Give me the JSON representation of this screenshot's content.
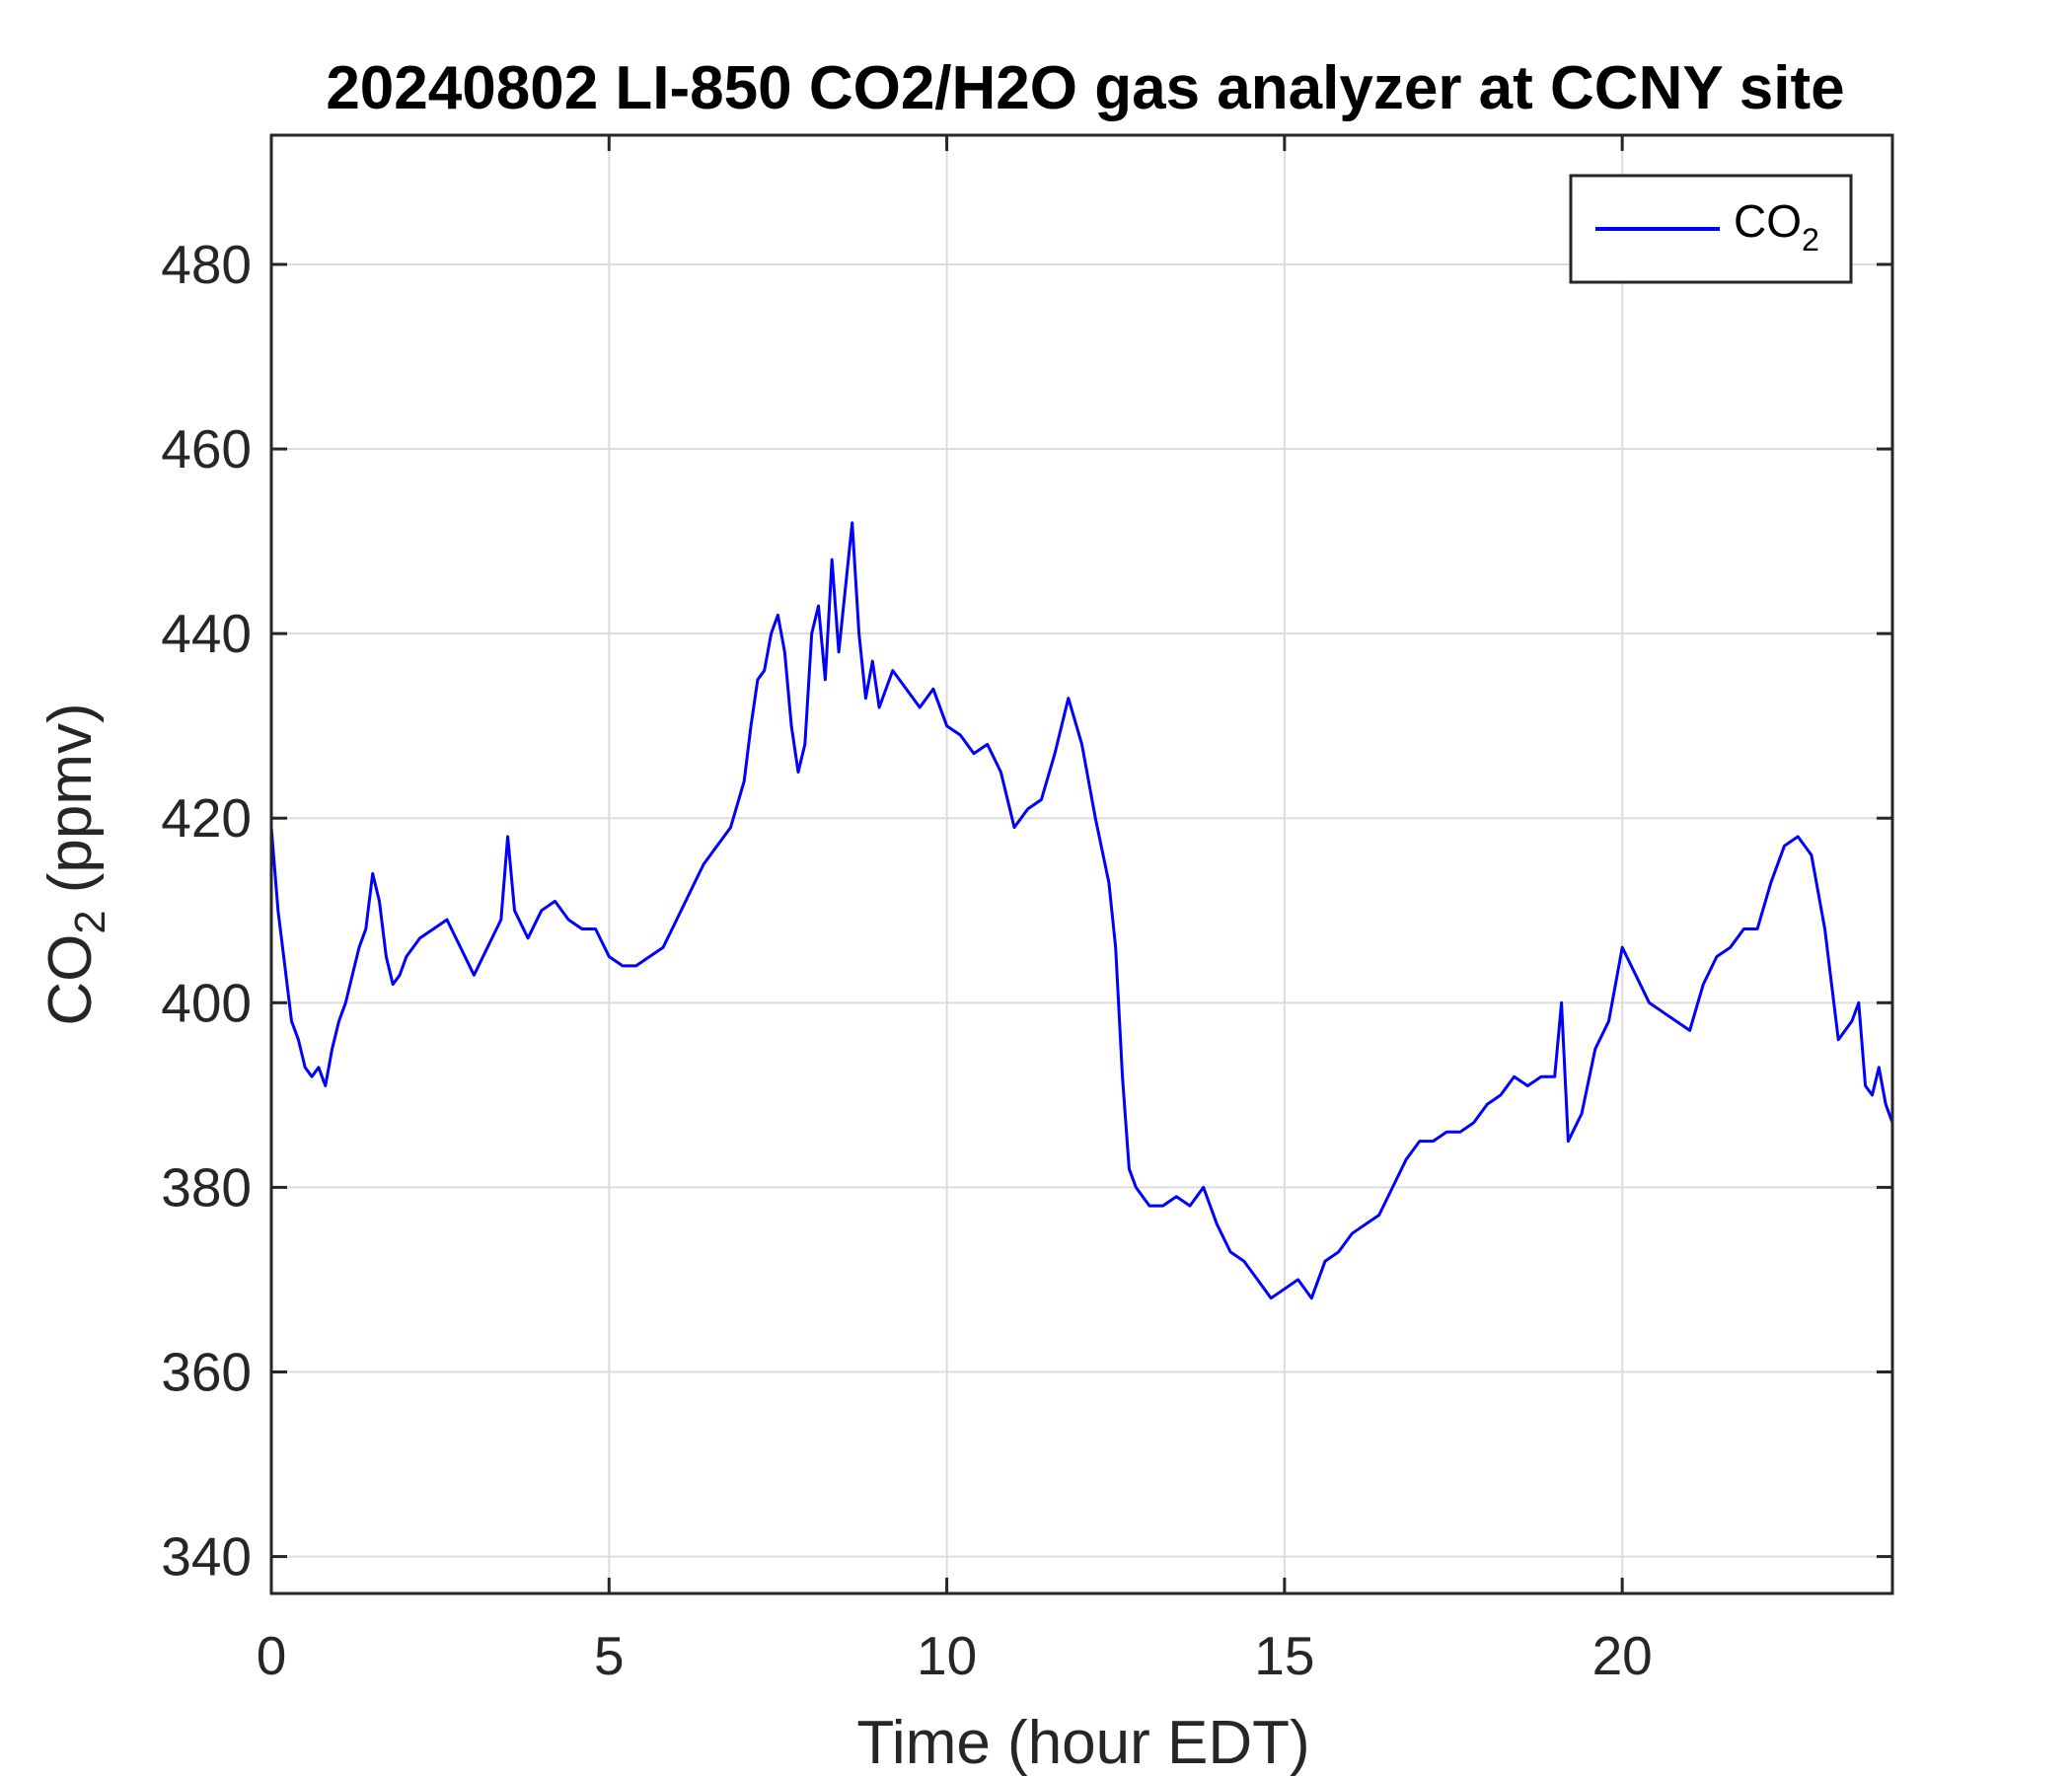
{
  "chart_data": {
    "type": "line",
    "title": "20240802 LI-850 CO2/H2O gas analyzer at CCNY site",
    "xlabel": "Time (hour EDT)",
    "ylabel": {
      "base": "CO",
      "subscript": "2",
      "suffix": " (ppmv)"
    },
    "xlim": [
      0,
      24
    ],
    "ylim": [
      336,
      494
    ],
    "xticks": [
      0,
      5,
      10,
      15,
      20
    ],
    "xtick_labels": [
      "0",
      "5",
      "10",
      "15",
      "20"
    ],
    "yticks": [
      340,
      360,
      380,
      400,
      420,
      440,
      460,
      480
    ],
    "ytick_labels": [
      "340",
      "360",
      "380",
      "400",
      "420",
      "440",
      "460",
      "480"
    ],
    "grid": true,
    "legend_position": "top-right",
    "colors": {
      "series": "#0000ff",
      "axes": "#262626",
      "grid": "#dcdcdc"
    },
    "series": [
      {
        "name": {
          "base": "CO",
          "subscript": "2"
        },
        "x": [
          0,
          0.1,
          0.2,
          0.3,
          0.4,
          0.5,
          0.6,
          0.7,
          0.8,
          0.9,
          1.0,
          1.1,
          1.2,
          1.3,
          1.4,
          1.5,
          1.6,
          1.7,
          1.8,
          1.9,
          2.0,
          2.2,
          2.4,
          2.6,
          2.8,
          3.0,
          3.2,
          3.4,
          3.5,
          3.6,
          3.8,
          4.0,
          4.2,
          4.4,
          4.6,
          4.8,
          5.0,
          5.2,
          5.4,
          5.6,
          5.8,
          6.0,
          6.2,
          6.4,
          6.6,
          6.8,
          7.0,
          7.1,
          7.2,
          7.3,
          7.4,
          7.5,
          7.6,
          7.7,
          7.8,
          7.9,
          8.0,
          8.1,
          8.2,
          8.3,
          8.4,
          8.5,
          8.6,
          8.7,
          8.8,
          8.9,
          9.0,
          9.2,
          9.4,
          9.6,
          9.8,
          10.0,
          10.2,
          10.4,
          10.6,
          10.8,
          11.0,
          11.2,
          11.4,
          11.6,
          11.8,
          12.0,
          12.2,
          12.4,
          12.5,
          12.6,
          12.7,
          12.8,
          12.9,
          13.0,
          13.2,
          13.4,
          13.6,
          13.8,
          14.0,
          14.2,
          14.4,
          14.6,
          14.8,
          15.0,
          15.2,
          15.4,
          15.6,
          15.8,
          16.0,
          16.2,
          16.4,
          16.6,
          16.8,
          17.0,
          17.2,
          17.4,
          17.6,
          17.8,
          18.0,
          18.2,
          18.4,
          18.6,
          18.8,
          19.0,
          19.1,
          19.2,
          19.4,
          19.6,
          19.8,
          20.0,
          20.2,
          20.4,
          20.6,
          20.8,
          21.0,
          21.2,
          21.4,
          21.6,
          21.8,
          22.0,
          22.2,
          22.4,
          22.6,
          22.8,
          23.0,
          23.2,
          23.4,
          23.5,
          23.6,
          23.7,
          23.8,
          23.9,
          24.0
        ],
        "y": [
          419,
          410,
          404,
          398,
          396,
          393,
          392,
          393,
          391,
          395,
          398,
          400,
          403,
          406,
          408,
          414,
          411,
          405,
          402,
          403,
          405,
          407,
          408,
          409,
          406,
          403,
          406,
          409,
          418,
          410,
          407,
          410,
          411,
          409,
          408,
          408,
          405,
          404,
          404,
          405,
          406,
          409,
          412,
          415,
          417,
          419,
          424,
          430,
          435,
          436,
          440,
          442,
          438,
          430,
          425,
          428,
          440,
          443,
          435,
          448,
          438,
          445,
          452,
          440,
          433,
          437,
          432,
          436,
          434,
          432,
          434,
          430,
          429,
          427,
          428,
          425,
          419,
          421,
          422,
          427,
          433,
          428,
          420,
          413,
          406,
          392,
          382,
          380,
          379,
          378,
          378,
          379,
          378,
          380,
          376,
          373,
          372,
          370,
          368,
          369,
          370,
          368,
          372,
          373,
          375,
          376,
          377,
          380,
          383,
          385,
          385,
          386,
          386,
          387,
          389,
          390,
          392,
          391,
          392,
          392,
          400,
          385,
          388,
          395,
          398,
          406,
          403,
          400,
          399,
          398,
          397,
          402,
          405,
          406,
          408,
          408,
          413,
          417,
          418,
          416,
          408,
          396,
          398,
          400,
          391,
          390,
          393,
          389,
          387
        ]
      }
    ]
  }
}
